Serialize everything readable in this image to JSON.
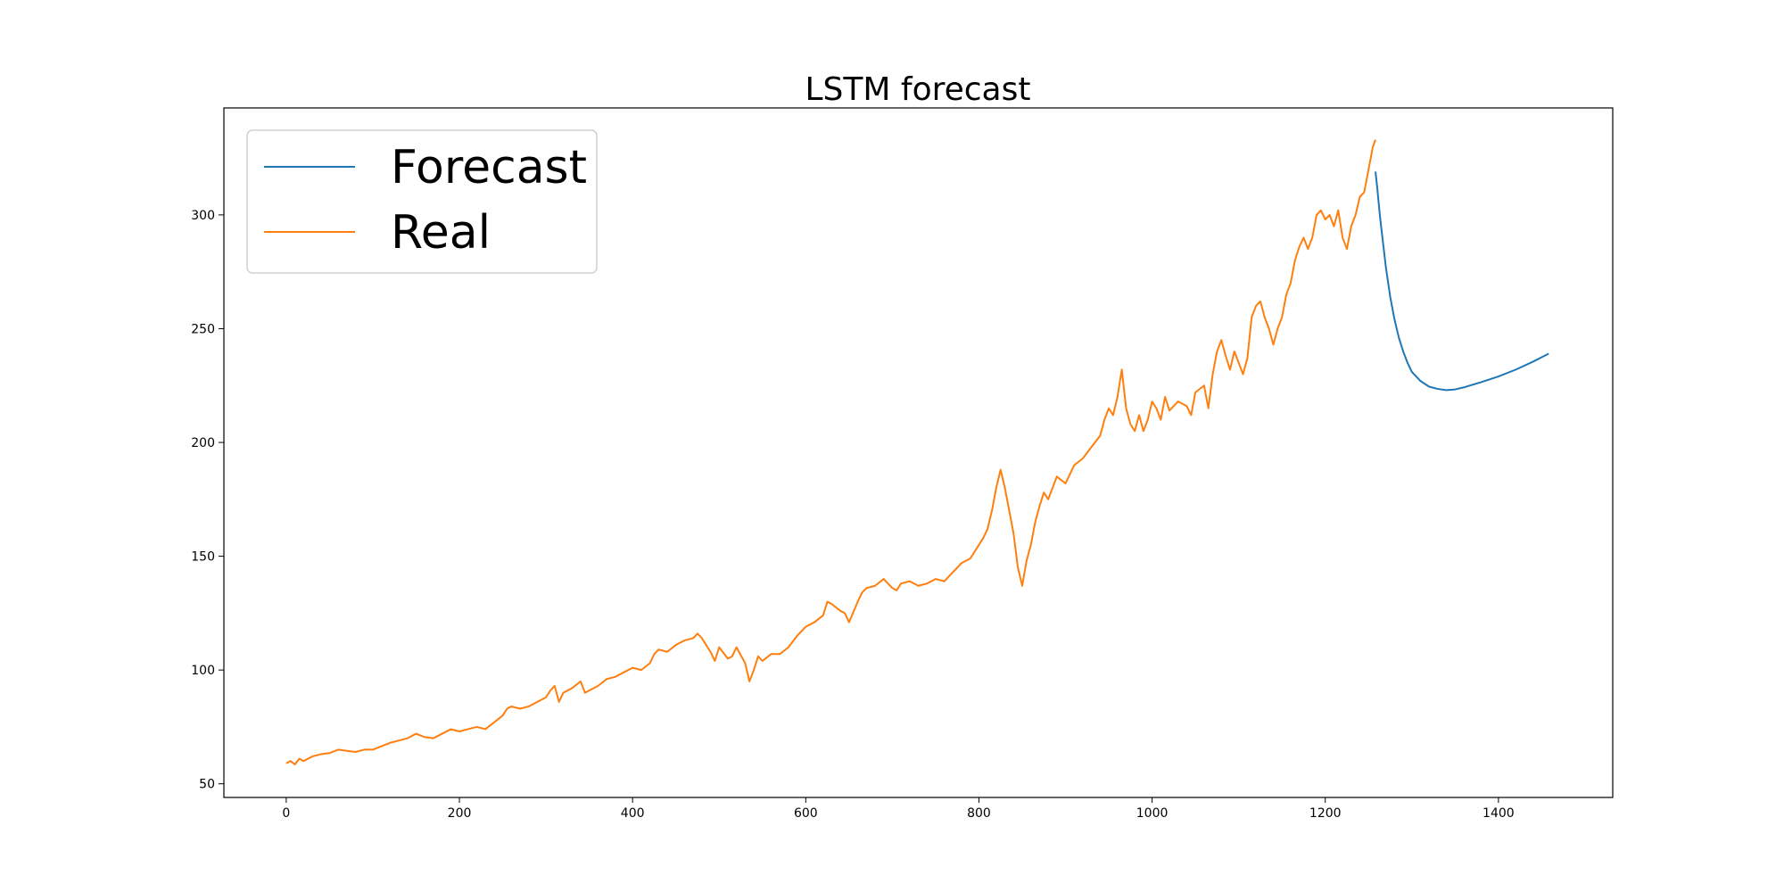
{
  "chart_data": {
    "type": "line",
    "title": "LSTM forecast",
    "xlabel": "",
    "ylabel": "",
    "xlim": [
      -72,
      1532
    ],
    "ylim": [
      44,
      347
    ],
    "xticks": [
      0,
      200,
      400,
      600,
      800,
      1000,
      1200,
      1400
    ],
    "yticks": [
      50,
      100,
      150,
      200,
      250,
      300
    ],
    "grid": false,
    "legend_position": "top-left",
    "series": [
      {
        "name": "Forecast",
        "color": "#1f77b4",
        "points": [
          [
            1258,
            319
          ],
          [
            1260,
            312
          ],
          [
            1263,
            300
          ],
          [
            1266,
            290
          ],
          [
            1270,
            277
          ],
          [
            1275,
            264
          ],
          [
            1280,
            254
          ],
          [
            1285,
            246
          ],
          [
            1290,
            240
          ],
          [
            1295,
            235
          ],
          [
            1300,
            231
          ],
          [
            1310,
            227
          ],
          [
            1320,
            224.5
          ],
          [
            1330,
            223.5
          ],
          [
            1340,
            223
          ],
          [
            1350,
            223.3
          ],
          [
            1360,
            224.2
          ],
          [
            1380,
            226.5
          ],
          [
            1400,
            229
          ],
          [
            1420,
            232
          ],
          [
            1440,
            235.5
          ],
          [
            1458,
            239
          ]
        ]
      },
      {
        "name": "Real",
        "color": "#ff7f0e",
        "points": [
          [
            0,
            59
          ],
          [
            5,
            60
          ],
          [
            10,
            58.5
          ],
          [
            15,
            61
          ],
          [
            20,
            60
          ],
          [
            30,
            62
          ],
          [
            40,
            63
          ],
          [
            50,
            63.5
          ],
          [
            60,
            65
          ],
          [
            70,
            64.5
          ],
          [
            80,
            64
          ],
          [
            90,
            65
          ],
          [
            100,
            65
          ],
          [
            110,
            66.5
          ],
          [
            120,
            68
          ],
          [
            130,
            69
          ],
          [
            140,
            70
          ],
          [
            150,
            72
          ],
          [
            160,
            70.5
          ],
          [
            170,
            70
          ],
          [
            180,
            72
          ],
          [
            190,
            74
          ],
          [
            200,
            73
          ],
          [
            210,
            74
          ],
          [
            220,
            75
          ],
          [
            230,
            74
          ],
          [
            240,
            77
          ],
          [
            250,
            80
          ],
          [
            255,
            83
          ],
          [
            260,
            84
          ],
          [
            270,
            83
          ],
          [
            280,
            84
          ],
          [
            290,
            86
          ],
          [
            300,
            88
          ],
          [
            305,
            91
          ],
          [
            310,
            93
          ],
          [
            315,
            86
          ],
          [
            320,
            90
          ],
          [
            330,
            92
          ],
          [
            340,
            95
          ],
          [
            345,
            90
          ],
          [
            350,
            91
          ],
          [
            360,
            93
          ],
          [
            370,
            96
          ],
          [
            380,
            97
          ],
          [
            390,
            99
          ],
          [
            400,
            101
          ],
          [
            410,
            100
          ],
          [
            420,
            103
          ],
          [
            425,
            107
          ],
          [
            430,
            109
          ],
          [
            440,
            108
          ],
          [
            450,
            111
          ],
          [
            460,
            113
          ],
          [
            470,
            114
          ],
          [
            475,
            116
          ],
          [
            480,
            114
          ],
          [
            490,
            108
          ],
          [
            495,
            104
          ],
          [
            500,
            110
          ],
          [
            510,
            105
          ],
          [
            515,
            106
          ],
          [
            520,
            110
          ],
          [
            530,
            103
          ],
          [
            535,
            95
          ],
          [
            540,
            100
          ],
          [
            545,
            106
          ],
          [
            550,
            104
          ],
          [
            560,
            107
          ],
          [
            570,
            107
          ],
          [
            580,
            110
          ],
          [
            590,
            115
          ],
          [
            600,
            119
          ],
          [
            610,
            121
          ],
          [
            620,
            124
          ],
          [
            625,
            130
          ],
          [
            630,
            129
          ],
          [
            640,
            126
          ],
          [
            645,
            125
          ],
          [
            650,
            121
          ],
          [
            660,
            130
          ],
          [
            665,
            134
          ],
          [
            670,
            136
          ],
          [
            680,
            137
          ],
          [
            690,
            140
          ],
          [
            700,
            136
          ],
          [
            705,
            135
          ],
          [
            710,
            138
          ],
          [
            720,
            139
          ],
          [
            730,
            137
          ],
          [
            740,
            138
          ],
          [
            750,
            140
          ],
          [
            760,
            139
          ],
          [
            770,
            143
          ],
          [
            780,
            147
          ],
          [
            790,
            149
          ],
          [
            800,
            155
          ],
          [
            805,
            158
          ],
          [
            810,
            162
          ],
          [
            815,
            170
          ],
          [
            820,
            180
          ],
          [
            825,
            188
          ],
          [
            830,
            180
          ],
          [
            835,
            170
          ],
          [
            840,
            160
          ],
          [
            845,
            145
          ],
          [
            850,
            137
          ],
          [
            855,
            148
          ],
          [
            860,
            155
          ],
          [
            865,
            165
          ],
          [
            870,
            172
          ],
          [
            875,
            178
          ],
          [
            880,
            175
          ],
          [
            885,
            180
          ],
          [
            890,
            185
          ],
          [
            900,
            182
          ],
          [
            910,
            190
          ],
          [
            920,
            193
          ],
          [
            930,
            198
          ],
          [
            940,
            203
          ],
          [
            945,
            210
          ],
          [
            950,
            215
          ],
          [
            955,
            212
          ],
          [
            960,
            220
          ],
          [
            965,
            232
          ],
          [
            970,
            215
          ],
          [
            975,
            208
          ],
          [
            980,
            205
          ],
          [
            985,
            212
          ],
          [
            990,
            205
          ],
          [
            995,
            210
          ],
          [
            1000,
            218
          ],
          [
            1005,
            215
          ],
          [
            1010,
            210
          ],
          [
            1015,
            220
          ],
          [
            1020,
            214
          ],
          [
            1030,
            218
          ],
          [
            1040,
            216
          ],
          [
            1045,
            212
          ],
          [
            1050,
            222
          ],
          [
            1060,
            225
          ],
          [
            1065,
            215
          ],
          [
            1070,
            230
          ],
          [
            1075,
            240
          ],
          [
            1080,
            245
          ],
          [
            1085,
            238
          ],
          [
            1090,
            232
          ],
          [
            1095,
            240
          ],
          [
            1100,
            235
          ],
          [
            1105,
            230
          ],
          [
            1110,
            237
          ],
          [
            1115,
            255
          ],
          [
            1120,
            260
          ],
          [
            1125,
            262
          ],
          [
            1130,
            255
          ],
          [
            1135,
            250
          ],
          [
            1140,
            243
          ],
          [
            1145,
            250
          ],
          [
            1150,
            255
          ],
          [
            1155,
            265
          ],
          [
            1160,
            270
          ],
          [
            1165,
            280
          ],
          [
            1170,
            286
          ],
          [
            1175,
            290
          ],
          [
            1180,
            285
          ],
          [
            1185,
            290
          ],
          [
            1190,
            300
          ],
          [
            1195,
            302
          ],
          [
            1200,
            298
          ],
          [
            1205,
            300
          ],
          [
            1210,
            295
          ],
          [
            1215,
            302
          ],
          [
            1220,
            290
          ],
          [
            1225,
            285
          ],
          [
            1230,
            295
          ],
          [
            1235,
            300
          ],
          [
            1240,
            308
          ],
          [
            1245,
            310
          ],
          [
            1250,
            320
          ],
          [
            1255,
            330
          ],
          [
            1258,
            333
          ]
        ]
      }
    ]
  }
}
